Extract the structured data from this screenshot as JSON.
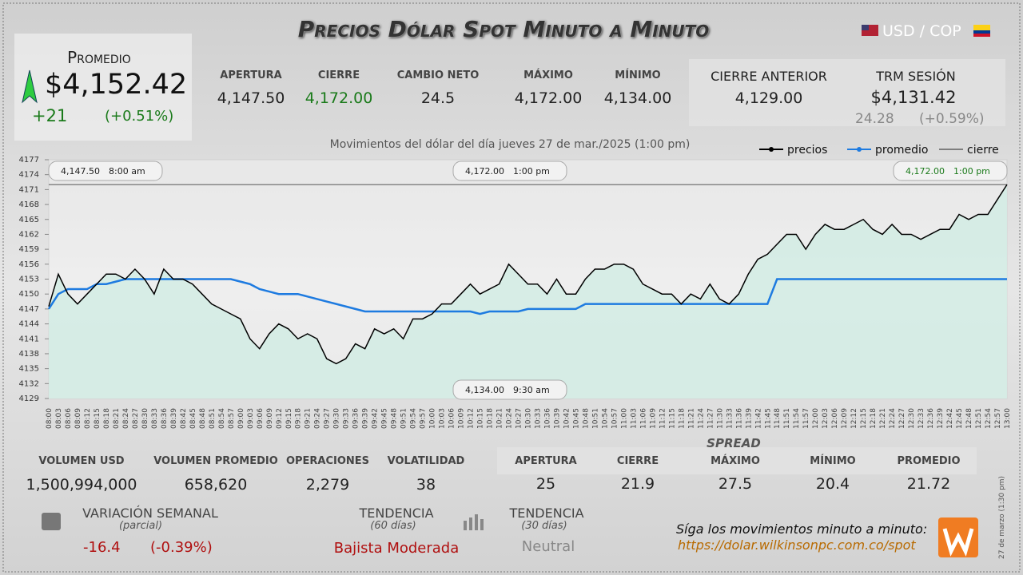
{
  "header": {
    "title": "Precios Dólar Spot Minuto a Minuto",
    "pair": "USD / COP"
  },
  "promedio": {
    "label": "Promedio",
    "value": "$4,152.42",
    "change": "+21",
    "change_pct": "(+0.51%)"
  },
  "session": {
    "labels": [
      "APERTURA",
      "CIERRE",
      "CAMBIO NETO",
      "MÁXIMO",
      "MÍNIMO"
    ],
    "values": [
      "4,147.50",
      "4,172.00",
      "24.5",
      "4,172.00",
      "4,134.00"
    ]
  },
  "previous": {
    "label": "CIERRE ANTERIOR",
    "value": "4,129.00"
  },
  "trm": {
    "label": "TRM SESIÓN",
    "value": "$4,131.42",
    "change": "24.28",
    "change_pct": "(+0.59%)"
  },
  "chart_data": {
    "type": "line",
    "title": "Movimientos del dólar del día jueves 27 de mar./2025 (1:00 pm)",
    "categories": [
      "08:00",
      "08:03",
      "08:06",
      "08:09",
      "08:12",
      "08:15",
      "08:18",
      "08:21",
      "08:24",
      "08:27",
      "08:30",
      "08:33",
      "08:36",
      "08:39",
      "08:42",
      "08:45",
      "08:48",
      "08:51",
      "08:54",
      "08:57",
      "09:00",
      "09:03",
      "09:06",
      "09:09",
      "09:12",
      "09:15",
      "09:18",
      "09:21",
      "09:24",
      "09:27",
      "09:30",
      "09:33",
      "09:36",
      "09:39",
      "09:42",
      "09:45",
      "09:48",
      "09:51",
      "09:54",
      "09:57",
      "10:00",
      "10:03",
      "10:06",
      "10:09",
      "10:12",
      "10:15",
      "10:18",
      "10:21",
      "10:24",
      "10:27",
      "10:30",
      "10:33",
      "10:36",
      "10:39",
      "10:42",
      "10:45",
      "10:48",
      "10:51",
      "10:54",
      "10:57",
      "11:00",
      "11:03",
      "11:06",
      "11:09",
      "11:12",
      "11:15",
      "11:18",
      "11:21",
      "11:24",
      "11:27",
      "11:30",
      "11:33",
      "11:36",
      "11:39",
      "11:42",
      "11:45",
      "11:48",
      "11:51",
      "11:54",
      "11:57",
      "12:00",
      "12:03",
      "12:06",
      "12:09",
      "12:12",
      "12:15",
      "12:18",
      "12:21",
      "12:24",
      "12:27",
      "12:30",
      "12:33",
      "12:36",
      "12:39",
      "12:42",
      "12:45",
      "12:48",
      "12:51",
      "12:54",
      "12:57",
      "13:00"
    ],
    "series": [
      {
        "name": "precios",
        "color": "#000000",
        "values": [
          4147.5,
          4154,
          4150,
          4148,
          4150,
          4152,
          4154,
          4154,
          4153,
          4155,
          4153,
          4150,
          4155,
          4153,
          4153,
          4152,
          4150,
          4148,
          4147,
          4146,
          4145,
          4141,
          4139,
          4142,
          4144,
          4143,
          4141,
          4142,
          4141,
          4137,
          4136,
          4137,
          4140,
          4139,
          4143,
          4142,
          4143,
          4141,
          4145,
          4145,
          4146,
          4148,
          4148,
          4150,
          4152,
          4150,
          4151,
          4152,
          4156,
          4154,
          4152,
          4152,
          4150,
          4153,
          4150,
          4150,
          4153,
          4155,
          4155,
          4156,
          4156,
          4155,
          4152,
          4151,
          4150,
          4150,
          4148,
          4150,
          4149,
          4152,
          4149,
          4148,
          4150,
          4154,
          4157,
          4158,
          4160,
          4162,
          4162,
          4159,
          4162,
          4164,
          4163,
          4163,
          4164,
          4165,
          4163,
          4162,
          4164,
          4162,
          4162,
          4161,
          4162,
          4163,
          4163,
          4166,
          4165,
          4166,
          4166,
          4169,
          4172
        ]
      },
      {
        "name": "promedio",
        "color": "#1e7be0",
        "values": [
          4147,
          4150,
          4151,
          4151,
          4151,
          4152,
          4152,
          4152.5,
          4153,
          4153,
          4153,
          4153,
          4153,
          4153,
          4153,
          4153,
          4153,
          4153,
          4153,
          4153,
          4152.5,
          4152,
          4151,
          4150.5,
          4150,
          4150,
          4150,
          4149.5,
          4149,
          4148.5,
          4148,
          4147.5,
          4147,
          4146.5,
          4146.5,
          4146.5,
          4146.5,
          4146.5,
          4146.5,
          4146.5,
          4146.5,
          4146.5,
          4146.5,
          4146.5,
          4146.5,
          4146,
          4146.5,
          4146.5,
          4146.5,
          4146.5,
          4147,
          4147,
          4147,
          4147,
          4147,
          4147,
          4148,
          4148,
          4148,
          4148,
          4148,
          4148,
          4148,
          4148,
          4148,
          4148,
          4148,
          4148,
          4148,
          4148,
          4148,
          4148,
          4148,
          4148,
          4148,
          4148,
          4153,
          4153,
          4153,
          4153,
          4153,
          4153,
          4153,
          4153,
          4153,
          4153,
          4153,
          4153,
          4153,
          4153,
          4153,
          4153,
          4153,
          4153,
          4153,
          4153,
          4153,
          4153,
          4153,
          4153,
          4153
        ]
      }
    ],
    "close_line": {
      "name": "cierre",
      "value": 4172,
      "color": "#222222"
    },
    "annotations": [
      {
        "price": "4,147.50",
        "time": "8:00 am"
      },
      {
        "price": "4,172.00",
        "time": "1:00 pm"
      },
      {
        "price": "4,172.00",
        "time": "1:00 pm"
      },
      {
        "price": "4,134.00",
        "time": "9:30 am"
      }
    ],
    "ylim": [
      4129,
      4177
    ],
    "yticks": [
      4129,
      4132,
      4135,
      4138,
      4141,
      4144,
      4147,
      4150,
      4153,
      4156,
      4159,
      4162,
      4165,
      4168,
      4171,
      4174,
      4177
    ],
    "grid": false,
    "area_color": "#d4ece4"
  },
  "volume": {
    "labels": [
      "VOLUMEN USD",
      "VOLUMEN PROMEDIO",
      "OPERACIONES",
      "VOLATILIDAD"
    ],
    "values": [
      "1,500,994,000",
      "658,620",
      "2,279",
      "38"
    ]
  },
  "spread": {
    "title": "SPREAD",
    "labels": [
      "APERTURA",
      "CIERRE",
      "MÁXIMO",
      "MÍNIMO",
      "PROMEDIO"
    ],
    "values": [
      "25",
      "21.9",
      "27.5",
      "20.4",
      "21.72"
    ]
  },
  "weekly": {
    "label": "VARIACIÓN SEMANAL",
    "sub": "(parcial)",
    "change": "-16.4",
    "change_pct": "(-0.39%)"
  },
  "trend60": {
    "label": "TENDENCIA",
    "sub": "(60 días)",
    "value": "Bajista Moderada"
  },
  "trend30": {
    "label": "TENDENCIA",
    "sub": "(30 días)",
    "value": "Neutral"
  },
  "footer": {
    "text": "Síga los movimientos minuto a minuto:",
    "url": "https://dolar.wilkinsonpc.com.co/spot",
    "stamp": "27 de marzo (1:30 pm)"
  }
}
